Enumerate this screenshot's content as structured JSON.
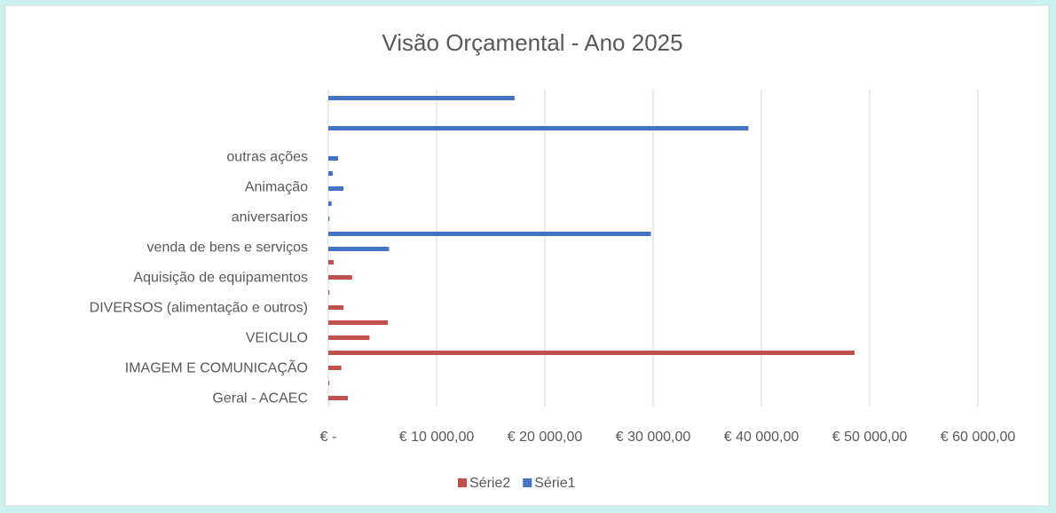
{
  "chart_data": {
    "type": "bar",
    "orientation": "horizontal",
    "title": "Visão Orçamental - Ano 2025",
    "categories": [
      "Geral - ACAEC",
      null,
      "IMAGEM E COMUNICAÇÃO",
      null,
      "VEICULO",
      null,
      "DIVERSOS (alimentação e outros)",
      null,
      "Aquisição de equipamentos",
      null,
      "venda de bens e serviços",
      null,
      "aniversarios",
      null,
      "Animação",
      null,
      "outras ações",
      null,
      null,
      null,
      null
    ],
    "series": [
      {
        "name": "Série2",
        "color": "#c0504d",
        "values": [
          1800,
          100,
          1200,
          48600,
          3800,
          5500,
          1400,
          100,
          2200,
          500,
          null,
          null,
          null,
          null,
          null,
          null,
          null,
          null,
          null,
          null,
          null
        ]
      },
      {
        "name": "Série1",
        "color": "#4472c4",
        "values": [
          null,
          null,
          null,
          null,
          null,
          null,
          null,
          null,
          null,
          null,
          5600,
          29800,
          100,
          300,
          1400,
          400,
          900,
          null,
          38800,
          null,
          17200
        ]
      }
    ],
    "xlim": [
      0,
      60000
    ],
    "xticks": [
      {
        "value": 0,
        "label": "€ -"
      },
      {
        "value": 10000,
        "label": "€ 10 000,00"
      },
      {
        "value": 20000,
        "label": "€ 20 000,00"
      },
      {
        "value": 30000,
        "label": "€ 30 000,00"
      },
      {
        "value": 40000,
        "label": "€ 40 000,00"
      },
      {
        "value": 50000,
        "label": "€ 50 000,00"
      },
      {
        "value": 60000,
        "label": "€ 60 000,00"
      }
    ],
    "grid": true,
    "legend": "bottom"
  }
}
